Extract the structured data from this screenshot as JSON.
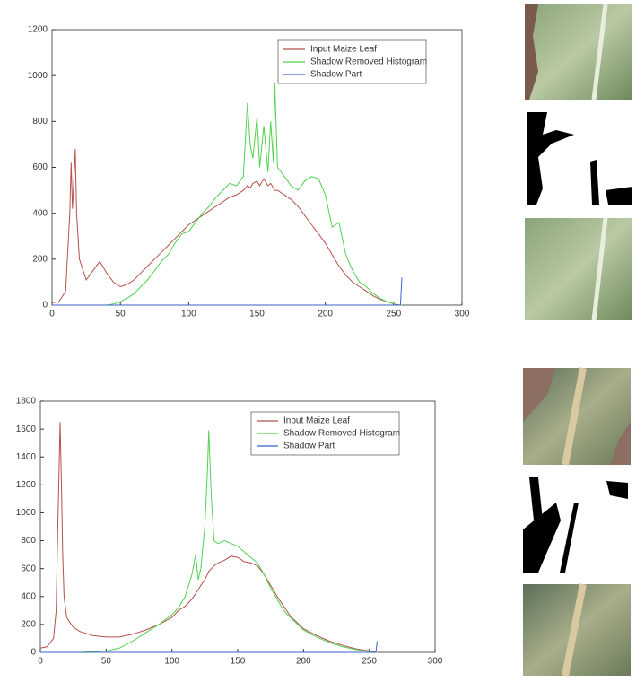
{
  "chart_data": [
    {
      "type": "line",
      "legend": "upper right",
      "x": [
        0,
        5,
        10,
        13,
        14,
        15,
        16,
        17,
        18,
        20,
        25,
        30,
        35,
        40,
        45,
        50,
        55,
        60,
        65,
        70,
        75,
        80,
        85,
        90,
        95,
        100,
        105,
        110,
        115,
        120,
        125,
        130,
        135,
        140,
        143,
        145,
        147,
        150,
        152,
        155,
        158,
        160,
        162,
        163,
        165,
        170,
        175,
        180,
        185,
        190,
        195,
        200,
        205,
        210,
        215,
        220,
        225,
        230,
        235,
        240,
        245,
        250,
        253,
        255,
        256
      ],
      "series": [
        {
          "name": "Input Maize Leaf",
          "color": "#b5504a",
          "values": [
            10,
            15,
            60,
            400,
            620,
            420,
            550,
            680,
            400,
            200,
            110,
            150,
            190,
            140,
            100,
            80,
            90,
            110,
            140,
            170,
            200,
            230,
            260,
            290,
            320,
            350,
            370,
            390,
            410,
            430,
            450,
            470,
            480,
            500,
            520,
            510,
            530,
            540,
            520,
            550,
            520,
            530,
            510,
            500,
            500,
            480,
            460,
            430,
            390,
            350,
            310,
            270,
            220,
            170,
            130,
            100,
            80,
            60,
            40,
            25,
            15,
            5,
            2,
            0,
            0
          ]
        },
        {
          "name": "Shadow Removed Histogram",
          "color": "#4fd24f",
          "values": [
            0,
            0,
            0,
            0,
            0,
            0,
            0,
            0,
            0,
            0,
            0,
            0,
            0,
            0,
            5,
            15,
            30,
            50,
            80,
            110,
            150,
            190,
            220,
            270,
            310,
            320,
            360,
            400,
            430,
            470,
            500,
            530,
            520,
            560,
            880,
            700,
            640,
            820,
            600,
            780,
            580,
            800,
            620,
            970,
            600,
            560,
            520,
            500,
            540,
            560,
            550,
            480,
            340,
            360,
            220,
            150,
            100,
            80,
            50,
            30,
            15,
            5,
            0,
            0,
            0
          ]
        },
        {
          "name": "Shadow Part",
          "color": "#3b5fc7",
          "values": [
            0,
            0,
            0,
            0,
            0,
            0,
            0,
            0,
            0,
            0,
            0,
            0,
            0,
            0,
            0,
            0,
            0,
            0,
            0,
            0,
            0,
            0,
            0,
            0,
            0,
            0,
            0,
            0,
            0,
            0,
            0,
            0,
            0,
            0,
            0,
            0,
            0,
            0,
            0,
            0,
            0,
            0,
            0,
            0,
            0,
            0,
            0,
            0,
            0,
            0,
            0,
            0,
            0,
            0,
            0,
            0,
            0,
            0,
            0,
            0,
            0,
            0,
            0,
            0,
            120
          ]
        }
      ],
      "xlim": [
        0,
        300
      ],
      "xticks": [
        0,
        50,
        100,
        150,
        200,
        250,
        300
      ],
      "ylim": [
        0,
        1200
      ],
      "yticks": [
        0,
        200,
        400,
        600,
        800,
        1000,
        1200
      ]
    },
    {
      "type": "line",
      "legend": "upper right",
      "x": [
        0,
        5,
        10,
        12,
        13,
        14,
        15,
        16,
        17,
        18,
        20,
        25,
        30,
        40,
        50,
        60,
        70,
        80,
        90,
        100,
        105,
        110,
        115,
        118,
        120,
        122,
        125,
        127,
        128,
        130,
        132,
        135,
        140,
        145,
        150,
        155,
        160,
        165,
        170,
        175,
        180,
        185,
        190,
        200,
        210,
        220,
        230,
        240,
        250,
        253,
        255,
        256
      ],
      "series": [
        {
          "name": "Input Maize Leaf",
          "color": "#b5504a",
          "values": [
            30,
            40,
            100,
            300,
            800,
            1200,
            1650,
            1200,
            700,
            400,
            250,
            180,
            150,
            120,
            110,
            110,
            130,
            160,
            200,
            250,
            300,
            330,
            380,
            420,
            450,
            480,
            520,
            560,
            580,
            600,
            620,
            640,
            660,
            690,
            680,
            650,
            640,
            620,
            560,
            480,
            400,
            330,
            260,
            170,
            120,
            80,
            50,
            25,
            10,
            5,
            0,
            0
          ]
        },
        {
          "name": "Shadow Removed Histogram",
          "color": "#4fd24f",
          "values": [
            0,
            0,
            0,
            0,
            0,
            0,
            0,
            0,
            0,
            0,
            0,
            0,
            0,
            5,
            10,
            30,
            80,
            140,
            200,
            270,
            320,
            400,
            550,
            700,
            520,
            600,
            900,
            1300,
            1590,
            1100,
            800,
            780,
            800,
            780,
            760,
            720,
            680,
            640,
            560,
            460,
            380,
            300,
            250,
            160,
            110,
            70,
            40,
            20,
            5,
            0,
            0,
            0
          ]
        },
        {
          "name": "Shadow Part",
          "color": "#3b5fc7",
          "values": [
            0,
            0,
            0,
            0,
            0,
            0,
            0,
            0,
            0,
            0,
            0,
            0,
            0,
            0,
            0,
            0,
            0,
            0,
            0,
            0,
            0,
            0,
            0,
            0,
            0,
            0,
            0,
            0,
            0,
            0,
            0,
            0,
            0,
            0,
            0,
            0,
            0,
            0,
            0,
            0,
            0,
            0,
            0,
            0,
            0,
            0,
            0,
            0,
            0,
            0,
            0,
            80
          ]
        }
      ],
      "xlim": [
        0,
        300
      ],
      "xticks": [
        0,
        50,
        100,
        150,
        200,
        250,
        300
      ],
      "ylim": [
        0,
        1800
      ],
      "yticks": [
        0,
        200,
        400,
        600,
        800,
        1000,
        1200,
        1400,
        1600,
        1800
      ]
    }
  ]
}
